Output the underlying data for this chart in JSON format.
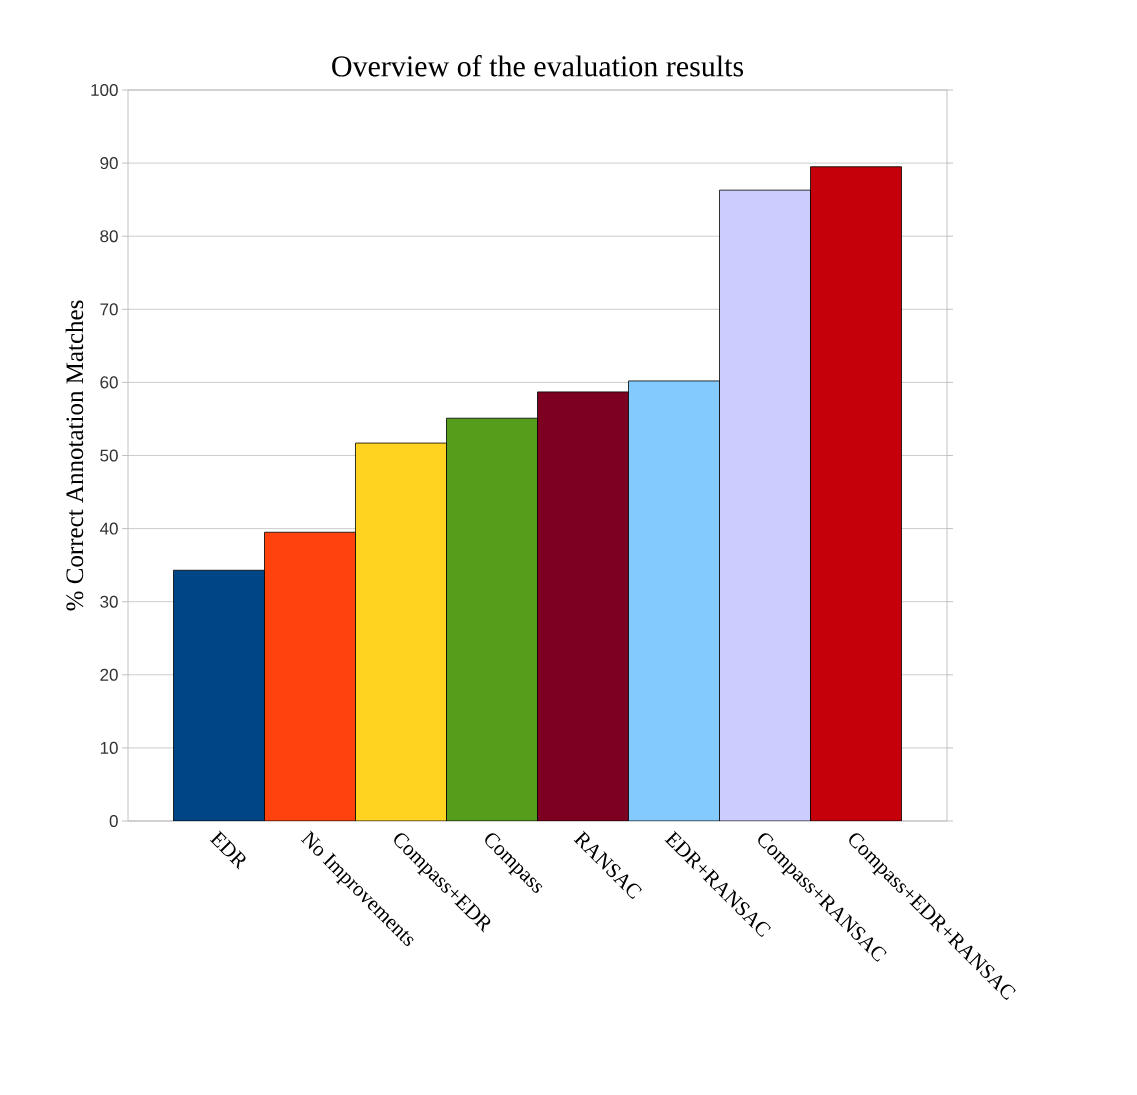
{
  "chart_data": {
    "type": "bar",
    "title": "Overview of the evaluation results",
    "ylabel": "% Correct Annotation Matches",
    "categories": [
      "EDR",
      "No Improvements",
      "Compass+EDR",
      "Compass",
      "RANSAC",
      "EDR+RANSAC",
      "Compass+RANSAC",
      "Compass+EDR+RANSAC"
    ],
    "values": [
      34.3,
      39.5,
      51.7,
      55.1,
      58.7,
      60.2,
      86.3,
      89.5
    ],
    "colors": [
      "#004586",
      "#ff420e",
      "#ffd320",
      "#579d1c",
      "#7e0021",
      "#83caff",
      "#ccccff",
      "#c5000b"
    ],
    "ylim": [
      0,
      100
    ],
    "yticks": [
      0,
      10,
      20,
      30,
      40,
      50,
      60,
      70,
      80,
      90,
      100
    ],
    "grid": "y"
  }
}
